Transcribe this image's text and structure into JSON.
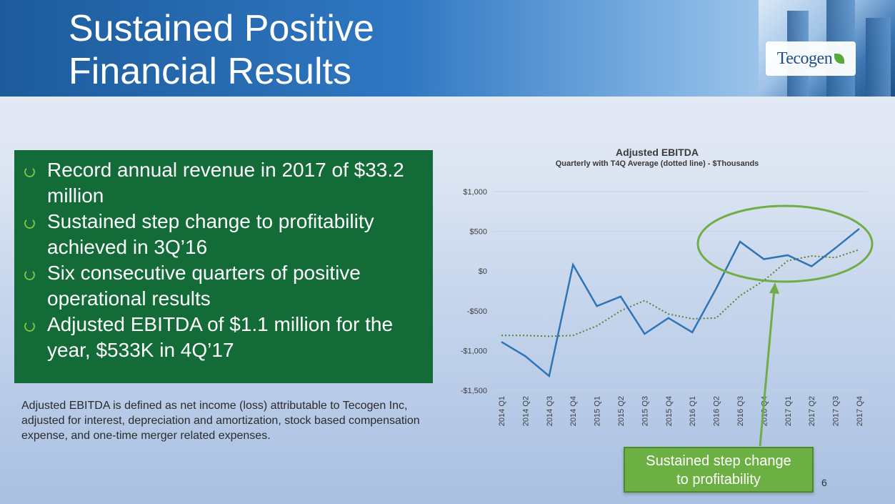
{
  "slide": {
    "title_line1": "Sustained Positive",
    "title_line2": "Financial Results",
    "logo_text": "Tecogen",
    "bullets": [
      "Record annual revenue in 2017 of $33.2 million",
      "Sustained step change to profitability achieved in 3Q’16",
      "Six consecutive quarters of positive operational results",
      "Adjusted EBITDA of $1.1 million for the year, $533K in 4Q’17"
    ],
    "footnote": "Adjusted EBITDA is defined as net income (loss) attributable to Tecogen Inc, adjusted for interest, depreciation and amortization, stock based compensation expense, and one-time merger related expenses.",
    "callout_line1": "Sustained step change",
    "callout_line2": "to profitability",
    "page_number": "6"
  },
  "colors": {
    "header_blue": "#1d5b9c",
    "box_green": "#136b37",
    "callout_green": "#6cb043",
    "quarterly_line": "#2e75b6",
    "average_line": "#548235",
    "highlight_ellipse": "#70ad47"
  },
  "chart_data": {
    "type": "line",
    "title": "Adjusted EBITDA",
    "subtitle": "Quarterly with T4Q Average (dotted line) - $Thousands",
    "categories": [
      "2014 Q1",
      "2014 Q2",
      "2014 Q3",
      "2014 Q4",
      "2015 Q1",
      "2015 Q2",
      "2015 Q3",
      "2015 Q4",
      "2016 Q1",
      "2016 Q2",
      "2016 Q3",
      "2016 Q4",
      "2017 Q1",
      "2017 Q2",
      "2017 Q3",
      "2017 Q4"
    ],
    "ylim": [
      -1500,
      1000
    ],
    "yticks": [
      -1500,
      -1000,
      -500,
      0,
      500,
      1000
    ],
    "ytick_labels": [
      "-$1,500",
      "-$1,000",
      "-$500",
      "$0",
      "$500",
      "$1,000"
    ],
    "series": [
      {
        "style": "solid",
        "values": [
          -890,
          -1070,
          -1320,
          80,
          -440,
          -320,
          -790,
          -590,
          -770,
          -220,
          370,
          150,
          200,
          60,
          290,
          533
        ]
      },
      {
        "style": "dotted",
        "values": [
          -810,
          -810,
          -820,
          -810,
          -690,
          -500,
          -370,
          -540,
          -600,
          -590,
          -310,
          -120,
          130,
          190,
          170,
          270
        ]
      }
    ],
    "highlight": {
      "shape": "ellipse",
      "around_categories": [
        "2016 Q2",
        "2017 Q4"
      ]
    }
  }
}
